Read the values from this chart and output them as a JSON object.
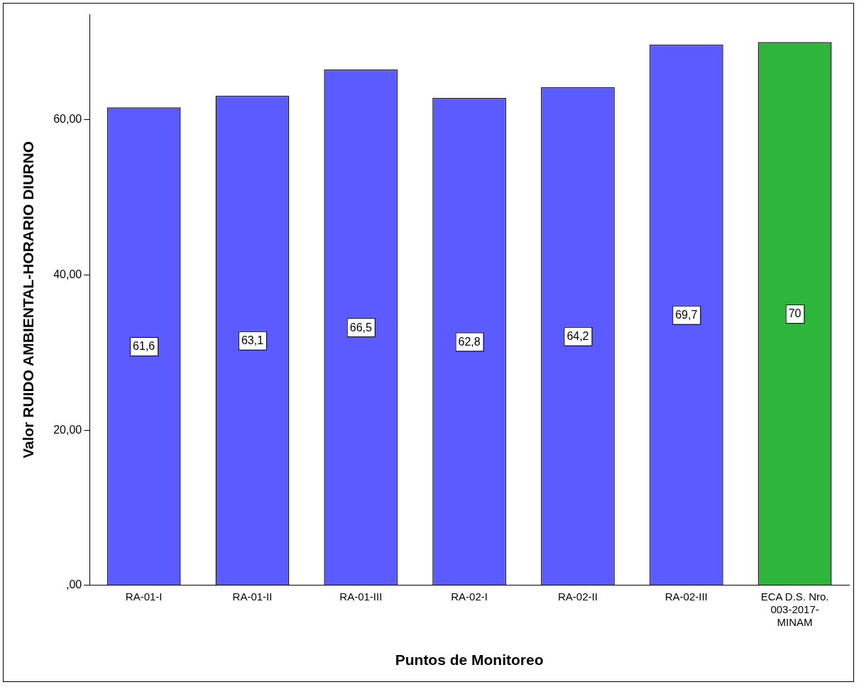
{
  "chart_data": {
    "type": "bar",
    "xlabel": "Puntos de Monitoreo",
    "ylabel": "Valor RUIDO AMBIENTAL-HORARIO DIURNO",
    "categories": [
      "RA-01-I",
      "RA-01-II",
      "RA-01-III",
      "RA-02-I",
      "RA-02-II",
      "RA-02-III",
      "ECA D.S. Nro. 003-2017-MINAM"
    ],
    "values": [
      61.6,
      63.1,
      66.5,
      62.8,
      64.2,
      69.7,
      70
    ],
    "value_labels": [
      "61,6",
      "63,1",
      "66,5",
      "62,8",
      "64,2",
      "69,7",
      "70"
    ],
    "colors": [
      "#5b5bff",
      "#5b5bff",
      "#5b5bff",
      "#5b5bff",
      "#5b5bff",
      "#5b5bff",
      "#2db53c"
    ],
    "ylim": [
      0,
      73.6
    ],
    "yticks": [
      {
        "value": 0,
        "label": ",00"
      },
      {
        "value": 20,
        "label": "20,00"
      },
      {
        "value": 40,
        "label": "40,00"
      },
      {
        "value": 60,
        "label": "60,00"
      }
    ],
    "grid": false,
    "legend": false
  }
}
